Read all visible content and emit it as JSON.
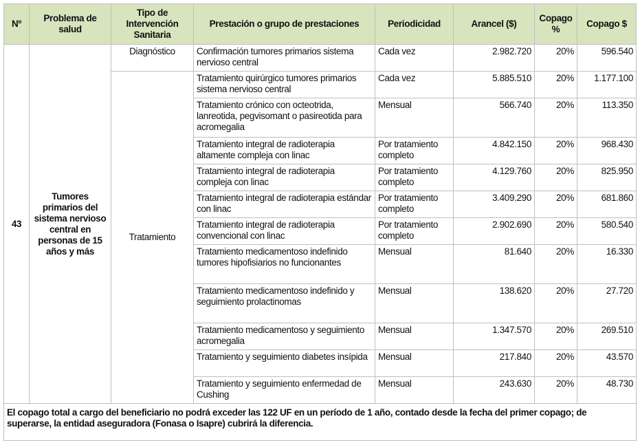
{
  "headers": [
    "Nº",
    "Problema de salud",
    "Tipo de Intervención Sanitaria",
    "Prestación o grupo de prestaciones",
    "Periodicidad",
    "Arancel ($)",
    "Copago %",
    "Copago $"
  ],
  "number": "43",
  "problem": "Tumores primarios del sistema nervioso central en personas de 15 años y más",
  "interventions": {
    "diagnostico": "Diagnóstico",
    "tratamiento": "Tratamiento"
  },
  "rows": [
    {
      "prestacion": "Confirmación tumores primarios sistema nervioso central",
      "periodicidad": "Cada vez",
      "arancel": "2.982.720",
      "copago_pct": "20%",
      "copago": "596.540"
    },
    {
      "prestacion": "Tratamiento quirúrgico tumores primarios sistema nervioso central",
      "periodicidad": "Cada vez",
      "arancel": "5.885.510",
      "copago_pct": "20%",
      "copago": "1.177.100"
    },
    {
      "prestacion": "Tratamiento crónico con octeotrida, lanreotida, pegvisomant o pasireotida para acromegalia",
      "periodicidad": "Mensual",
      "arancel": "566.740",
      "copago_pct": "20%",
      "copago": "113.350"
    },
    {
      "prestacion": "Tratamiento integral de radioterapia altamente compleja con linac",
      "periodicidad": "Por tratamiento completo",
      "arancel": "4.842.150",
      "copago_pct": "20%",
      "copago": "968.430"
    },
    {
      "prestacion": "Tratamiento integral de radioterapia compleja con linac",
      "periodicidad": "Por tratamiento completo",
      "arancel": "4.129.760",
      "copago_pct": "20%",
      "copago": "825.950"
    },
    {
      "prestacion": "Tratamiento integral de radioterapia estándar con linac",
      "periodicidad": "Por tratamiento completo",
      "arancel": "3.409.290",
      "copago_pct": "20%",
      "copago": "681.860"
    },
    {
      "prestacion": "Tratamiento integral de radioterapia convencional con linac",
      "periodicidad": "Por tratamiento completo",
      "arancel": "2.902.690",
      "copago_pct": "20%",
      "copago": "580.540"
    },
    {
      "prestacion": "Tratamiento medicamentoso indefinido tumores hipofisiarios no funcionantes",
      "periodicidad": "Mensual",
      "arancel": "81.640",
      "copago_pct": "20%",
      "copago": "16.330"
    },
    {
      "prestacion": "Tratamiento medicamentoso indefinido y seguimiento prolactinomas",
      "periodicidad": "Mensual",
      "arancel": "138.620",
      "copago_pct": "20%",
      "copago": "27.720"
    },
    {
      "prestacion": "Tratamiento medicamentoso y seguimiento acromegalia",
      "periodicidad": "Mensual",
      "arancel": "1.347.570",
      "copago_pct": "20%",
      "copago": "269.510"
    },
    {
      "prestacion": "Tratamiento y seguimiento diabetes insípida",
      "periodicidad": "Mensual",
      "arancel": "217.840",
      "copago_pct": "20%",
      "copago": "43.570"
    },
    {
      "prestacion": "Tratamiento y seguimiento enfermedad de Cushing",
      "periodicidad": "Mensual",
      "arancel": "243.630",
      "copago_pct": "20%",
      "copago": "48.730"
    }
  ],
  "footer": "El copago total a cargo del beneficiario no podrá exceder las 122 UF en un período de 1 año, contado desde la fecha del primer copago; de superarse, la entidad aseguradora (Fonasa o Isapre) cubrirá la diferencia.",
  "colors": {
    "header_bg": "#d7e4bd",
    "border": "#bfbfbf"
  }
}
